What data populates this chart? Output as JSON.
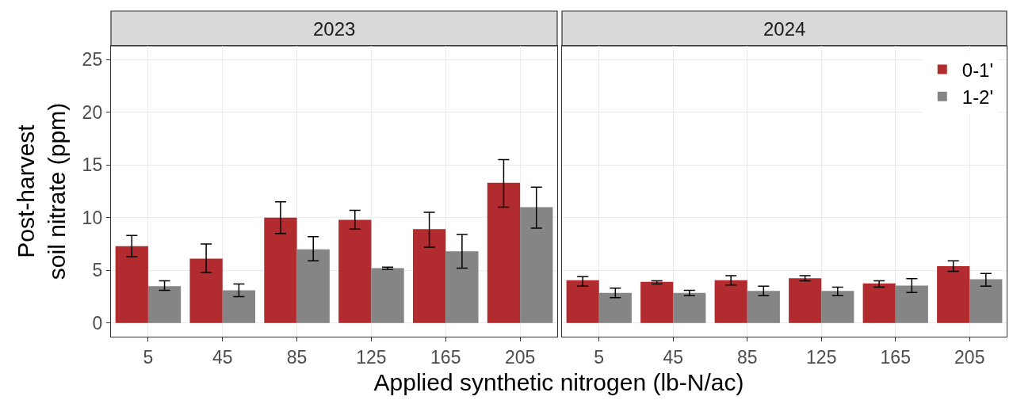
{
  "chart_data": [
    {
      "type": "bar",
      "title": "2023",
      "xlabel": "Applied synthetic nitrogen (lb-N/ac)",
      "ylabel": "Post-harvest\nsoil nitrate (ppm)",
      "categories": [
        "5",
        "45",
        "85",
        "125",
        "165",
        "205"
      ],
      "ylim": [
        -1.3,
        26.3
      ],
      "yticks": [
        0,
        5,
        10,
        15,
        20,
        25
      ],
      "grid": true,
      "legend": false,
      "series": [
        {
          "color": "#b22b2f",
          "values": [
            7.3,
            6.1,
            10.0,
            9.8,
            8.9,
            13.3
          ],
          "errors": [
            [
              6.3,
              8.3
            ],
            [
              4.8,
              7.5
            ],
            [
              8.5,
              11.5
            ],
            [
              8.9,
              10.7
            ],
            [
              7.2,
              10.5
            ],
            [
              11.0,
              15.5
            ]
          ]
        },
        {
          "color": "#858585",
          "values": [
            3.5,
            3.1,
            7.0,
            5.2,
            6.8,
            11.0
          ],
          "errors": [
            [
              3.1,
              4.0
            ],
            [
              2.5,
              3.7
            ],
            [
              5.9,
              8.2
            ],
            [
              5.1,
              5.3
            ],
            [
              5.2,
              8.4
            ],
            [
              9.0,
              12.9
            ]
          ]
        }
      ]
    },
    {
      "type": "bar",
      "title": "2024",
      "categories": [
        "5",
        "45",
        "85",
        "125",
        "165",
        "205"
      ],
      "ylim": [
        -1.3,
        26.3
      ],
      "yticks": [
        0,
        5,
        10,
        15,
        20,
        25
      ],
      "grid": true,
      "legend": "top right",
      "tick_labels": "x",
      "series": [
        {
          "name": "0-1'",
          "color": "#b22b2f",
          "values": [
            4.05,
            3.9,
            4.05,
            4.25,
            3.75,
            5.4
          ],
          "errors": [
            [
              3.5,
              4.4
            ],
            [
              3.7,
              4.0
            ],
            [
              3.6,
              4.5
            ],
            [
              4.0,
              4.5
            ],
            [
              3.4,
              4.0
            ],
            [
              4.9,
              5.9
            ]
          ]
        },
        {
          "name": "1-2'",
          "color": "#858585",
          "values": [
            2.85,
            2.85,
            3.05,
            3.05,
            3.55,
            4.15
          ],
          "errors": [
            [
              2.4,
              3.3
            ],
            [
              2.6,
              3.1
            ],
            [
              2.6,
              3.5
            ],
            [
              2.6,
              3.4
            ],
            [
              2.9,
              4.2
            ],
            [
              3.5,
              4.7
            ]
          ]
        }
      ]
    }
  ]
}
